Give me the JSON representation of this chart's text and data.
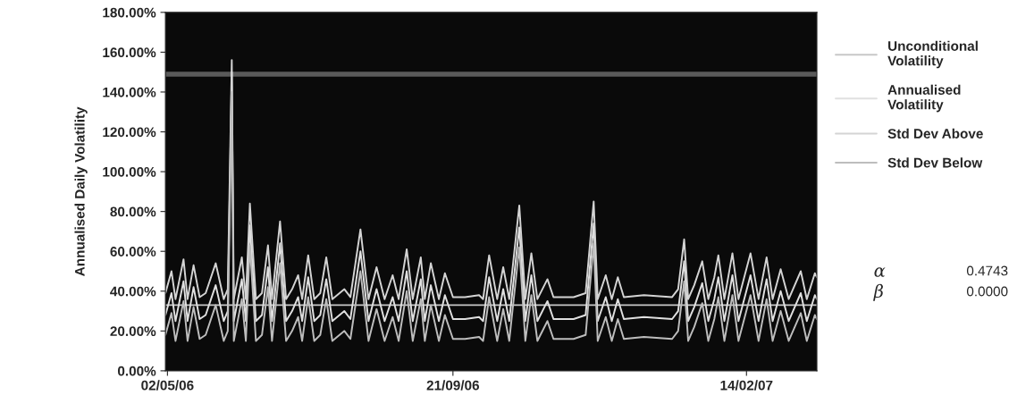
{
  "chart_data": {
    "type": "line",
    "ylabel": "Annualised Daily Volatility",
    "x": [
      "2006-05-01",
      "2006-05-04",
      "2006-05-06",
      "2006-05-10",
      "2006-05-12",
      "2006-05-15",
      "2006-05-18",
      "2006-05-21",
      "2006-05-26",
      "2006-05-30",
      "2006-06-01",
      "2006-06-03",
      "2006-06-04",
      "2006-06-08",
      "2006-06-10",
      "2006-06-12",
      "2006-06-15",
      "2006-06-18",
      "2006-06-21",
      "2006-06-23",
      "2006-06-27",
      "2006-06-30",
      "2006-07-03",
      "2006-07-06",
      "2006-07-08",
      "2006-07-11",
      "2006-07-14",
      "2006-07-17",
      "2006-07-20",
      "2006-07-23",
      "2006-07-29",
      "2006-08-01",
      "2006-08-06",
      "2006-08-10",
      "2006-08-14",
      "2006-08-18",
      "2006-08-22",
      "2006-08-25",
      "2006-08-29",
      "2006-09-01",
      "2006-09-05",
      "2006-09-07",
      "2006-09-10",
      "2006-09-14",
      "2006-09-17",
      "2006-09-21",
      "2006-09-27",
      "2006-10-04",
      "2006-10-06",
      "2006-10-09",
      "2006-10-13",
      "2006-10-16",
      "2006-10-19",
      "2006-10-24",
      "2006-10-27",
      "2006-10-30",
      "2006-11-02",
      "2006-11-07",
      "2006-11-10",
      "2006-11-20",
      "2006-11-26",
      "2006-11-30",
      "2006-12-02",
      "2006-12-06",
      "2006-12-09",
      "2006-12-12",
      "2006-12-15",
      "2006-12-25",
      "2007-01-08",
      "2007-01-11",
      "2007-01-14",
      "2007-01-16",
      "2007-01-19",
      "2007-01-23",
      "2007-01-26",
      "2007-01-29",
      "2007-01-31",
      "2007-02-03",
      "2007-02-07",
      "2007-02-10",
      "2007-02-16",
      "2007-02-20",
      "2007-02-24",
      "2007-02-27",
      "2007-03-03",
      "2007-03-07",
      "2007-03-13",
      "2007-03-16",
      "2007-03-20",
      "2007-03-21"
    ],
    "series": [
      {
        "name": "Unconditional Volatility",
        "color": "#c8c8c8",
        "x": [
          "2006-05-01",
          "2007-03-21"
        ],
        "values": [
          33,
          33
        ]
      },
      {
        "name": "Annualised Volatility",
        "color": "#e0e0e0",
        "values": [
          28,
          39,
          25,
          45,
          25,
          42,
          26,
          28,
          43,
          25,
          30,
          150,
          25,
          46,
          25,
          73,
          25,
          28,
          52,
          25,
          64,
          25,
          30,
          37,
          25,
          47,
          25,
          28,
          46,
          25,
          30,
          26,
          60,
          25,
          41,
          25,
          37,
          25,
          50,
          25,
          46,
          25,
          43,
          25,
          38,
          26,
          26,
          27,
          25,
          47,
          25,
          41,
          25,
          72,
          25,
          48,
          25,
          35,
          26,
          26,
          28,
          74,
          25,
          37,
          25,
          36,
          26,
          27,
          26,
          30,
          55,
          25,
          32,
          44,
          25,
          36,
          47,
          25,
          48,
          25,
          48,
          25,
          46,
          25,
          40,
          25,
          39,
          25,
          38,
          36
        ]
      },
      {
        "name": "Std Dev Above",
        "color": "#d4d4d4",
        "values": [
          39,
          50,
          36,
          56,
          36,
          53,
          37,
          39,
          54,
          36,
          41,
          156,
          36,
          57,
          36,
          84,
          36,
          39,
          63,
          36,
          75,
          36,
          41,
          48,
          36,
          58,
          36,
          39,
          57,
          36,
          41,
          37,
          71,
          36,
          52,
          36,
          48,
          36,
          61,
          36,
          57,
          36,
          54,
          36,
          49,
          37,
          37,
          38,
          36,
          58,
          36,
          52,
          36,
          83,
          36,
          59,
          36,
          46,
          37,
          37,
          39,
          85,
          36,
          48,
          36,
          47,
          37,
          38,
          37,
          41,
          66,
          36,
          43,
          55,
          36,
          47,
          58,
          36,
          59,
          36,
          59,
          36,
          57,
          36,
          51,
          36,
          50,
          36,
          49,
          47
        ]
      },
      {
        "name": "Std Dev Below",
        "color": "#bdbdbd",
        "values": [
          18,
          29,
          15,
          35,
          15,
          32,
          16,
          18,
          33,
          15,
          20,
          140,
          15,
          36,
          15,
          63,
          15,
          18,
          42,
          15,
          54,
          15,
          20,
          27,
          15,
          37,
          15,
          18,
          36,
          15,
          20,
          16,
          50,
          15,
          31,
          15,
          27,
          15,
          40,
          15,
          36,
          15,
          33,
          15,
          28,
          16,
          16,
          17,
          15,
          37,
          15,
          31,
          15,
          62,
          15,
          38,
          15,
          25,
          16,
          16,
          18,
          64,
          15,
          27,
          15,
          26,
          16,
          17,
          16,
          20,
          45,
          15,
          22,
          34,
          15,
          26,
          37,
          15,
          38,
          15,
          38,
          15,
          36,
          15,
          30,
          15,
          29,
          15,
          28,
          26
        ]
      }
    ],
    "xlim": [
      "2006-05-01",
      "2007-03-21"
    ],
    "xticks": [
      {
        "value": "2006-05-02",
        "label": "02/05/06"
      },
      {
        "value": "2006-09-21",
        "label": "21/09/06"
      },
      {
        "value": "2007-02-14",
        "label": "14/02/07"
      }
    ],
    "ylim": [
      0,
      180
    ],
    "yticks": [
      {
        "value": 0,
        "label": "0.00%"
      },
      {
        "value": 20,
        "label": "20.00%"
      },
      {
        "value": 40,
        "label": "40.00%"
      },
      {
        "value": 60,
        "label": "60.00%"
      },
      {
        "value": 80,
        "label": "80.00%"
      },
      {
        "value": 100,
        "label": "100.00%"
      },
      {
        "value": 120,
        "label": "120.00%"
      },
      {
        "value": 140,
        "label": "140.00%"
      },
      {
        "value": 160,
        "label": "160.00%"
      },
      {
        "value": 180,
        "label": "180.00%"
      }
    ],
    "ref_lines": [
      {
        "axis": "y",
        "value": 149,
        "color": "#5a5a5a"
      }
    ],
    "annotations": [
      "α",
      "0.4743",
      "β",
      "0.0000"
    ],
    "grid": false,
    "legend": "right",
    "marker": "none",
    "line_style": "solid"
  }
}
